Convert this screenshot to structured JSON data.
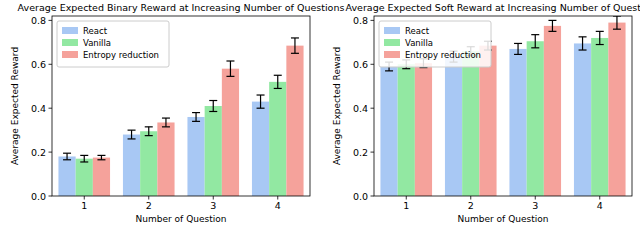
{
  "chart_data": [
    {
      "type": "bar",
      "title": "Average Expected Binary Reward at Increasing Number of Questions",
      "x_label": "Number of Question",
      "y_label": "Average Expected Reward",
      "categories": [
        "1",
        "2",
        "3",
        "4"
      ],
      "series": [
        {
          "name": "React",
          "color": "#a8c8f4",
          "values": [
            0.18,
            0.28,
            0.36,
            0.43
          ],
          "errors": [
            0.015,
            0.02,
            0.02,
            0.03
          ]
        },
        {
          "name": "Vanilla",
          "color": "#92e8a2",
          "values": [
            0.17,
            0.295,
            0.41,
            0.52
          ],
          "errors": [
            0.015,
            0.02,
            0.025,
            0.03
          ]
        },
        {
          "name": "Entropy reduction",
          "color": "#f5a29b",
          "values": [
            0.175,
            0.335,
            0.58,
            0.685
          ],
          "errors": [
            0.01,
            0.02,
            0.035,
            0.035
          ]
        }
      ],
      "ylim": [
        0,
        0.82
      ],
      "yticks": [
        {
          "value": 0,
          "label": "0.0"
        },
        0.2,
        0.4,
        0.6,
        0.8
      ],
      "legend": "upper left"
    },
    {
      "type": "bar",
      "title": "Average Expected Soft Reward at Increasing Number of Questions",
      "x_label": "Number of Question",
      "y_label": "Average Expected Reward",
      "categories": [
        "1",
        "2",
        "3",
        "4"
      ],
      "series": [
        {
          "name": "React",
          "color": "#a8c8f4",
          "values": [
            0.59,
            0.635,
            0.67,
            0.695
          ],
          "errors": [
            0.02,
            0.025,
            0.025,
            0.03
          ]
        },
        {
          "name": "Vanilla",
          "color": "#92e8a2",
          "values": [
            0.6,
            0.66,
            0.705,
            0.72
          ],
          "errors": [
            0.02,
            0.02,
            0.03,
            0.03
          ]
        },
        {
          "name": "Entropy reduction",
          "color": "#f5a29b",
          "values": [
            0.605,
            0.685,
            0.775,
            0.79
          ],
          "errors": [
            0.02,
            0.02,
            0.025,
            0.03
          ]
        }
      ],
      "ylim": [
        0,
        0.82
      ],
      "yticks": [
        {
          "value": 0,
          "label": "0.0"
        },
        0.2,
        0.4,
        0.6,
        0.8
      ],
      "legend": "upper left"
    }
  ]
}
